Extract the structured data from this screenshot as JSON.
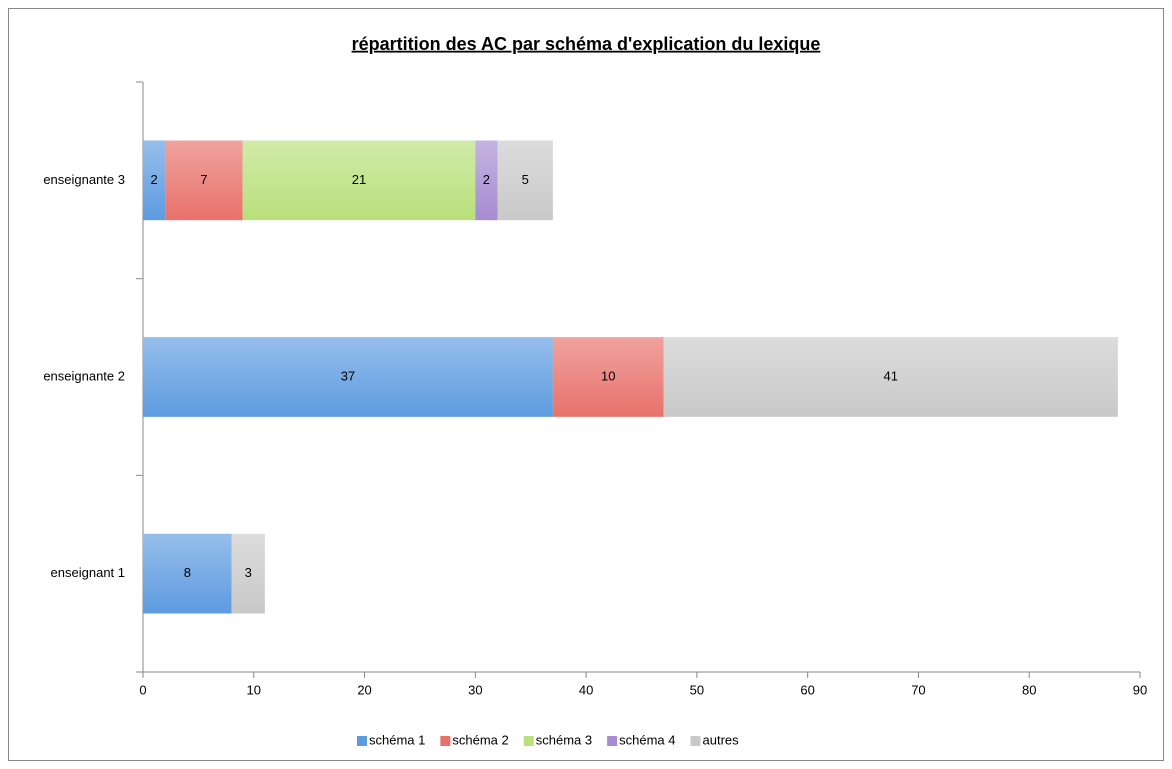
{
  "chart_data": {
    "type": "stacked_barh",
    "title": "répartition des AC par schéma d'explication du lexique",
    "categories": [
      "enseignant 1",
      "enseignante 2",
      "enseignante 3"
    ],
    "series": [
      {
        "name": "schéma 1",
        "color": "#5d9be0",
        "values": [
          8,
          37,
          2
        ]
      },
      {
        "name": "schéma 2",
        "color": "#e8716b",
        "values": [
          null,
          10,
          7
        ]
      },
      {
        "name": "schéma 3",
        "color": "#b9e07b",
        "values": [
          null,
          null,
          21
        ]
      },
      {
        "name": "schéma 4",
        "color": "#a68bd1",
        "values": [
          null,
          null,
          2
        ]
      },
      {
        "name": "autres",
        "color": "#c9c9c9",
        "values": [
          3,
          41,
          5
        ]
      }
    ],
    "xlim": [
      0,
      90
    ],
    "xticks": [
      0,
      10,
      20,
      30,
      40,
      50,
      60,
      70,
      80,
      90
    ],
    "grid": false,
    "legend": "bottom"
  }
}
